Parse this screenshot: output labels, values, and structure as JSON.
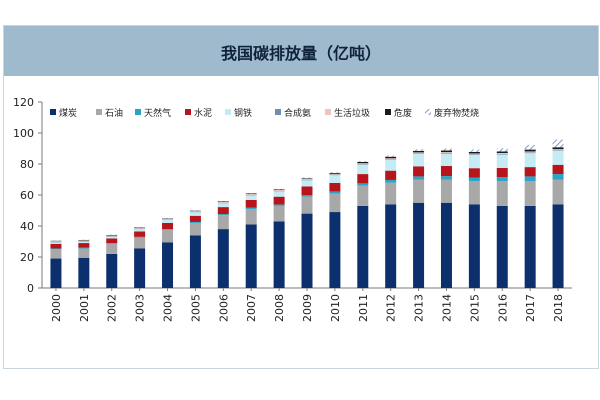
{
  "page": {
    "title": "我国碳排放量（亿吨）"
  },
  "colors": {
    "煤炭": "#0c2f6e",
    "石油": "#a8a8a8",
    "天然气": "#27a6c9",
    "水泥": "#b7151b",
    "钢铁": "#c3ecf4",
    "合成氨": "#6d8fb2",
    "生活垃圾": "#f1c3bc",
    "危废": "#1b1b1b",
    "废弃物焚烧": "#7d9ed0"
  },
  "chart_data": {
    "type": "bar",
    "stacked": true,
    "title": "我国碳排放量（亿吨）",
    "xlabel": "",
    "ylabel": "",
    "ylim": [
      0,
      120
    ],
    "yticks": [
      0,
      20,
      40,
      60,
      80,
      100,
      120
    ],
    "grid": false,
    "legend_position": "top",
    "categories": [
      "2000",
      "2001",
      "2002",
      "2003",
      "2004",
      "2005",
      "2006",
      "2007",
      "2008",
      "2009",
      "2010",
      "2011",
      "2012",
      "2013",
      "2014",
      "2015",
      "2016",
      "2017",
      "2018"
    ],
    "series": [
      {
        "name": "煤炭",
        "values": [
          19,
          19.5,
          22,
          25.5,
          29.5,
          34,
          38,
          41,
          43,
          48,
          49,
          53,
          54,
          55,
          55,
          54,
          53,
          53,
          54
        ]
      },
      {
        "name": "石油",
        "values": [
          6,
          6,
          6.5,
          7,
          8,
          8,
          9,
          10,
          10,
          11,
          12,
          13,
          14,
          15,
          15,
          15,
          16,
          16,
          16
        ]
      },
      {
        "name": "天然气",
        "values": [
          0.5,
          0.5,
          0.5,
          0.5,
          0.5,
          0.6,
          0.7,
          0.8,
          0.9,
          1,
          1.3,
          1.5,
          1.7,
          2,
          2.2,
          2.3,
          2.5,
          3,
          3.5
        ]
      },
      {
        "name": "水泥",
        "values": [
          3,
          3,
          3,
          3.5,
          4,
          4,
          4.5,
          5,
          5,
          5.5,
          5.5,
          6,
          6,
          6.5,
          6.5,
          6,
          6,
          6,
          6
        ]
      },
      {
        "name": "钢铁",
        "values": [
          1,
          1,
          1.2,
          1.5,
          2,
          2.3,
          2.5,
          3,
          3.5,
          4,
          5,
          6,
          7,
          8,
          8,
          8.5,
          8.5,
          9,
          9
        ]
      },
      {
        "name": "合成氨",
        "values": [
          0.3,
          0.3,
          0.3,
          0.3,
          0.3,
          0.3,
          0.3,
          0.3,
          0.3,
          0.4,
          0.4,
          0.4,
          0.4,
          0.4,
          0.4,
          0.4,
          0.4,
          0.4,
          0.4
        ]
      },
      {
        "name": "生活垃圾",
        "values": [
          0.4,
          0.4,
          0.4,
          0.4,
          0.4,
          0.4,
          0.5,
          0.5,
          0.5,
          0.5,
          0.5,
          0.6,
          0.6,
          0.6,
          0.6,
          0.6,
          0.7,
          0.7,
          0.7
        ]
      },
      {
        "name": "危废",
        "values": [
          0.3,
          0.3,
          0.3,
          0.3,
          0.3,
          0.3,
          0.4,
          0.4,
          0.4,
          0.4,
          0.5,
          0.8,
          1,
          1,
          1,
          1,
          1,
          1.2,
          1.2
        ]
      },
      {
        "name": "废弃物焚烧",
        "values": [
          0.2,
          0.2,
          0.2,
          0.2,
          0.2,
          0.3,
          0.3,
          0.3,
          0.4,
          0.5,
          0.5,
          0.6,
          0.8,
          1,
          1.3,
          1.5,
          2,
          3,
          5
        ]
      }
    ]
  }
}
